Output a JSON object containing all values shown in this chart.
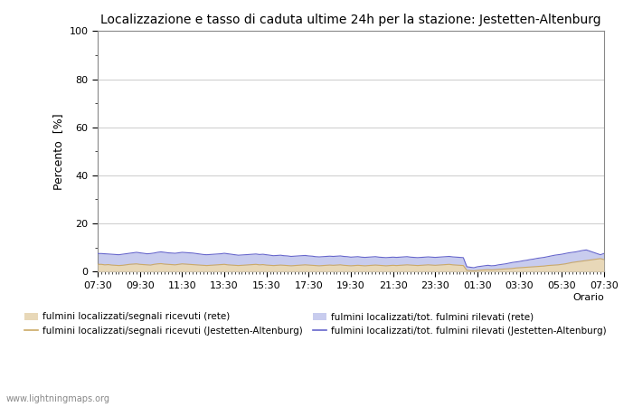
{
  "title": "Localizzazione e tasso di caduta ultime 24h per la stazione: Jestetten-Altenburg",
  "ylabel": "Percento  [%]",
  "xlabel_right": "Orario",
  "yticks": [
    0,
    20,
    40,
    60,
    80,
    100
  ],
  "ytick_minor": [
    10,
    30,
    50,
    70,
    90
  ],
  "xtick_labels": [
    "07:30",
    "09:30",
    "11:30",
    "13:30",
    "15:30",
    "17:30",
    "19:30",
    "21:30",
    "23:30",
    "01:30",
    "03:30",
    "05:30",
    "07:30"
  ],
  "ylim": [
    0,
    100
  ],
  "background_color": "#ffffff",
  "plot_bg_color": "#ffffff",
  "grid_color": "#cccccc",
  "watermark": "www.lightningmaps.org",
  "fill_rete_color": "#e8d8b8",
  "fill_rete_alpha": 1.0,
  "fill_jestetten_color": "#c8ccee",
  "fill_jestetten_alpha": 1.0,
  "line_rete_color": "#ccaa66",
  "line_jestetten_color": "#6666cc",
  "n_points": 145,
  "rete_fill_values": [
    3.0,
    3.0,
    2.8,
    2.9,
    2.7,
    2.6,
    2.5,
    2.6,
    2.8,
    3.0,
    3.1,
    3.2,
    3.0,
    2.9,
    2.8,
    2.7,
    3.0,
    3.2,
    3.3,
    3.1,
    3.0,
    2.9,
    2.8,
    3.0,
    3.2,
    3.1,
    3.0,
    2.9,
    2.8,
    2.7,
    2.6,
    2.5,
    2.6,
    2.7,
    2.8,
    2.9,
    3.0,
    2.8,
    2.7,
    2.6,
    2.5,
    2.6,
    2.7,
    2.8,
    2.9,
    3.0,
    2.8,
    2.9,
    2.7,
    2.6,
    2.5,
    2.6,
    2.7,
    2.6,
    2.5,
    2.4,
    2.5,
    2.6,
    2.7,
    2.8,
    2.7,
    2.6,
    2.5,
    2.4,
    2.5,
    2.6,
    2.7,
    2.6,
    2.7,
    2.8,
    2.6,
    2.5,
    2.4,
    2.5,
    2.6,
    2.5,
    2.4,
    2.5,
    2.6,
    2.7,
    2.6,
    2.5,
    2.4,
    2.5,
    2.6,
    2.5,
    2.6,
    2.7,
    2.8,
    2.7,
    2.6,
    2.5,
    2.6,
    2.7,
    2.8,
    2.7,
    2.6,
    2.7,
    2.8,
    2.9,
    3.0,
    2.8,
    2.7,
    2.6,
    2.5,
    0.5,
    0.4,
    0.3,
    0.5,
    0.6,
    0.7,
    0.8,
    0.7,
    0.8,
    0.9,
    1.0,
    1.1,
    1.2,
    1.3,
    1.5,
    1.6,
    1.7,
    1.8,
    1.9,
    2.0,
    2.1,
    2.2,
    2.3,
    2.5,
    2.6,
    2.7,
    2.8,
    3.0,
    3.2,
    3.5,
    3.8,
    4.0,
    4.2,
    4.4,
    4.6,
    4.8,
    5.0,
    5.2,
    5.4,
    5.0
  ],
  "jestetten_fill_values": [
    7.5,
    7.5,
    7.4,
    7.3,
    7.2,
    7.1,
    7.0,
    7.2,
    7.4,
    7.6,
    7.8,
    8.0,
    7.8,
    7.6,
    7.4,
    7.5,
    7.7,
    8.0,
    8.2,
    8.0,
    7.8,
    7.7,
    7.6,
    7.8,
    8.0,
    7.9,
    7.8,
    7.7,
    7.5,
    7.3,
    7.1,
    7.0,
    7.1,
    7.2,
    7.3,
    7.4,
    7.6,
    7.4,
    7.2,
    7.0,
    6.8,
    6.9,
    7.0,
    7.1,
    7.2,
    7.3,
    7.1,
    7.2,
    7.0,
    6.8,
    6.6,
    6.7,
    6.8,
    6.6,
    6.5,
    6.3,
    6.4,
    6.5,
    6.6,
    6.7,
    6.5,
    6.4,
    6.2,
    6.1,
    6.2,
    6.3,
    6.4,
    6.3,
    6.4,
    6.5,
    6.3,
    6.2,
    6.0,
    6.1,
    6.2,
    6.0,
    5.9,
    6.0,
    6.1,
    6.2,
    6.0,
    5.9,
    5.8,
    5.9,
    6.0,
    5.9,
    6.0,
    6.1,
    6.2,
    6.0,
    5.9,
    5.8,
    5.9,
    6.0,
    6.1,
    6.0,
    5.9,
    6.0,
    6.1,
    6.2,
    6.3,
    6.1,
    6.0,
    5.9,
    5.8,
    2.0,
    1.8,
    1.6,
    2.0,
    2.2,
    2.4,
    2.6,
    2.4,
    2.5,
    2.8,
    3.0,
    3.2,
    3.5,
    3.8,
    4.0,
    4.2,
    4.5,
    4.7,
    5.0,
    5.2,
    5.5,
    5.7,
    5.9,
    6.2,
    6.5,
    6.8,
    7.0,
    7.2,
    7.5,
    7.8,
    8.0,
    8.2,
    8.5,
    8.8,
    9.0,
    8.5,
    8.0,
    7.5,
    7.0,
    7.5
  ]
}
